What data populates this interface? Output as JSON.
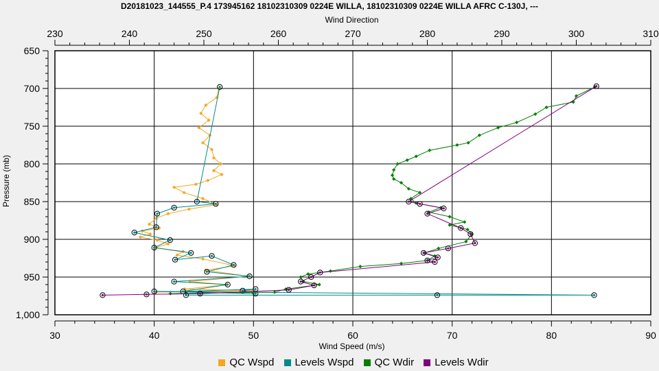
{
  "chart_data": {
    "type": "line",
    "title": "D20181023_144555_P.4 173945162 18102310309 0224E WILLA, 18102310309 0224E WILLA AFRC C-130J, ---",
    "xlabel_top": "Wind Direction",
    "xlabel_bottom": "Wind Speed (m/s)",
    "ylabel": "Pressure (mb)",
    "x_top_lim": [
      230,
      310
    ],
    "x_top_ticks": [
      "230",
      "240",
      "250",
      "260",
      "270",
      "280",
      "290",
      "300",
      "310"
    ],
    "x_bottom_lim": [
      30,
      90
    ],
    "x_bottom_ticks": [
      "30",
      "40",
      "50",
      "60",
      "70",
      "80",
      "90"
    ],
    "y_lim": [
      650,
      1000
    ],
    "y_inverted": true,
    "y_ticks": [
      "650",
      "700",
      "750",
      "800",
      "850",
      "900",
      "950",
      "1,000"
    ],
    "grid": true,
    "legend_position": "bottom",
    "series": [
      {
        "name": "QC Wspd",
        "color": "#f5a623",
        "axis": "bottom",
        "marker": "diamond",
        "points": [
          [
            46.5,
            700
          ],
          [
            46.3,
            712
          ],
          [
            45.2,
            722
          ],
          [
            44.7,
            733
          ],
          [
            45.5,
            742
          ],
          [
            44.5,
            752
          ],
          [
            45.6,
            762
          ],
          [
            44.9,
            772
          ],
          [
            45.8,
            781
          ],
          [
            46.0,
            792
          ],
          [
            46.7,
            800
          ],
          [
            46.0,
            809
          ],
          [
            46.8,
            814
          ],
          [
            45.4,
            822
          ],
          [
            44.2,
            827
          ],
          [
            42.0,
            831
          ],
          [
            43.0,
            838
          ],
          [
            44.9,
            846
          ],
          [
            46.3,
            854
          ],
          [
            43.5,
            860
          ],
          [
            41.4,
            866
          ],
          [
            40.2,
            872
          ],
          [
            39.5,
            880
          ],
          [
            40.5,
            885
          ],
          [
            38.8,
            889
          ],
          [
            39.6,
            893
          ],
          [
            38.6,
            897
          ],
          [
            40.3,
            901
          ],
          [
            41.4,
            906
          ],
          [
            40.1,
            911
          ],
          [
            42.9,
            916
          ],
          [
            42.3,
            921
          ],
          [
            44.9,
            926
          ],
          [
            48.1,
            935
          ],
          [
            45.2,
            941
          ],
          [
            49.5,
            949
          ],
          [
            43.6,
            956
          ],
          [
            47.3,
            960
          ],
          [
            43.1,
            966
          ],
          [
            50.0,
            968
          ],
          [
            40.2,
            970
          ]
        ]
      },
      {
        "name": "Levels Wspd",
        "color": "#008b8b",
        "axis": "bottom",
        "marker": "circle",
        "points": [
          [
            46.6,
            698
          ],
          [
            44.3,
            850
          ],
          [
            46.2,
            853
          ],
          [
            42.0,
            858
          ],
          [
            40.3,
            866
          ],
          [
            40.2,
            884
          ],
          [
            38.0,
            891
          ],
          [
            41.6,
            901
          ],
          [
            40.0,
            911
          ],
          [
            43.7,
            918
          ],
          [
            42.1,
            927
          ],
          [
            45.8,
            922
          ],
          [
            48.0,
            934
          ],
          [
            45.3,
            943
          ],
          [
            49.6,
            949
          ],
          [
            42.0,
            956
          ],
          [
            47.4,
            960
          ],
          [
            42.9,
            969
          ],
          [
            50.2,
            966
          ],
          [
            48.9,
            968
          ],
          [
            50.2,
            972
          ],
          [
            40.0,
            969
          ],
          [
            84.3,
            974
          ],
          [
            68.5,
            974
          ],
          [
            43.2,
            974
          ]
        ]
      },
      {
        "name": "QC Wdir",
        "color": "#008000",
        "axis": "top",
        "marker": "diamond",
        "points": [
          [
            302.5,
            698
          ],
          [
            300.0,
            710
          ],
          [
            299.6,
            718
          ],
          [
            296.0,
            725
          ],
          [
            294.5,
            734
          ],
          [
            292.0,
            745
          ],
          [
            289.5,
            752
          ],
          [
            287.0,
            762
          ],
          [
            285.5,
            772
          ],
          [
            284.0,
            775
          ],
          [
            280.3,
            782
          ],
          [
            278.5,
            790
          ],
          [
            277.3,
            795
          ],
          [
            276.0,
            800
          ],
          [
            275.5,
            808
          ],
          [
            275.3,
            815
          ],
          [
            275.5,
            820
          ],
          [
            276.5,
            825
          ],
          [
            277.5,
            833
          ],
          [
            279.0,
            838
          ],
          [
            277.8,
            846
          ],
          [
            278.5,
            852
          ],
          [
            281.8,
            858
          ],
          [
            280.2,
            864
          ],
          [
            283.0,
            870
          ],
          [
            285.0,
            877
          ],
          [
            283.0,
            881
          ],
          [
            285.4,
            887
          ],
          [
            286.0,
            893
          ],
          [
            285.2,
            903
          ],
          [
            281.5,
            912
          ],
          [
            279.6,
            918
          ],
          [
            281.0,
            922
          ],
          [
            280.0,
            928
          ],
          [
            276.5,
            932
          ],
          [
            271.0,
            936
          ],
          [
            267.0,
            942
          ],
          [
            264.0,
            946
          ],
          [
            263.0,
            950
          ],
          [
            263.4,
            956
          ],
          [
            265.5,
            960
          ],
          [
            261.0,
            966
          ],
          [
            259.5,
            970
          ],
          [
            245.5,
            972
          ]
        ]
      },
      {
        "name": "Levels Wdir",
        "color": "#800080",
        "axis": "top",
        "marker": "circle",
        "points": [
          [
            302.7,
            697
          ],
          [
            277.5,
            850
          ],
          [
            279.0,
            853
          ],
          [
            282.2,
            859
          ],
          [
            280.0,
            866
          ],
          [
            284.5,
            885
          ],
          [
            285.8,
            893
          ],
          [
            286.4,
            905
          ],
          [
            282.8,
            912
          ],
          [
            279.5,
            918
          ],
          [
            281.4,
            924
          ],
          [
            280.0,
            928
          ],
          [
            281.0,
            930
          ],
          [
            265.6,
            944
          ],
          [
            264.4,
            950
          ],
          [
            263.0,
            956
          ],
          [
            264.8,
            961
          ],
          [
            261.4,
            967
          ],
          [
            249.5,
            972
          ],
          [
            242.3,
            973
          ],
          [
            236.4,
            974
          ]
        ]
      }
    ]
  }
}
